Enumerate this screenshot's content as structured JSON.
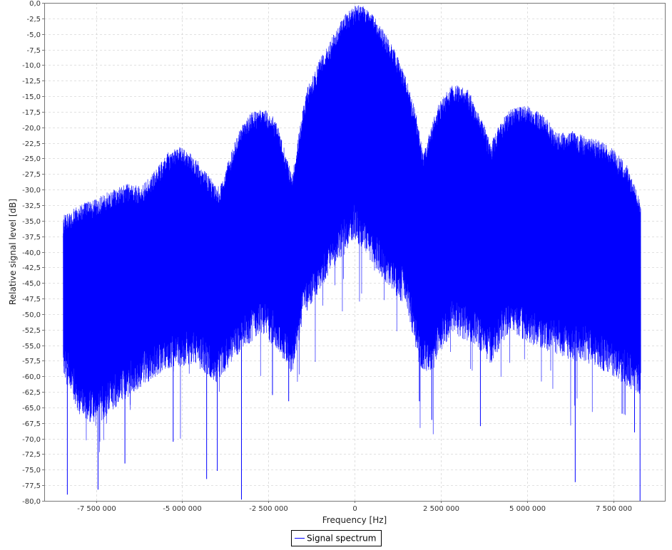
{
  "chart_data": {
    "type": "line",
    "xlabel": "Frequency [Hz]",
    "ylabel": "Relative signal level [dB]",
    "xlim": [
      -9000000,
      9000000
    ],
    "ylim": [
      -80,
      0
    ],
    "x_ticks": [
      -7500000,
      -5000000,
      -2500000,
      0,
      2500000,
      5000000,
      7500000
    ],
    "x_tick_labels": [
      "-7 500 000",
      "-5 000 000",
      "-2 500 000",
      "0",
      "2 500 000",
      "5 000 000",
      "7 500 000"
    ],
    "y_ticks": [
      0,
      -2.5,
      -5,
      -7.5,
      -10,
      -12.5,
      -15,
      -17.5,
      -20,
      -22.5,
      -25,
      -27.5,
      -30,
      -32.5,
      -35,
      -37.5,
      -40,
      -42.5,
      -45,
      -47.5,
      -50,
      -52.5,
      -55,
      -57.5,
      -60,
      -62.5,
      -65,
      -67.5,
      -70,
      -72.5,
      -75,
      -77.5,
      -80
    ],
    "y_tick_labels": [
      "0,0",
      "-2,5",
      "-5,0",
      "-7,5",
      "-10,0",
      "-12,5",
      "-15,0",
      "-17,5",
      "-20,0",
      "-22,5",
      "-25,0",
      "-27,5",
      "-30,0",
      "-32,5",
      "-35,0",
      "-37,5",
      "-40,0",
      "-42,5",
      "-45,0",
      "-47,5",
      "-50,0",
      "-52,5",
      "-55,0",
      "-57,5",
      "-60,0",
      "-62,5",
      "-65,0",
      "-67,5",
      "-70,0",
      "-72,5",
      "-75,0",
      "-77,5",
      "-80,0"
    ],
    "grid": true,
    "legend_position": "bottom-center",
    "series": [
      {
        "name": "Signal spectrum",
        "color": "#0000ff",
        "x_range": [
          -8450000,
          8300000
        ],
        "envelope_top": [
          {
            "x": -8450000,
            "y": -34
          },
          {
            "x": -7800000,
            "y": -32
          },
          {
            "x": -7000000,
            "y": -30
          },
          {
            "x": -6600000,
            "y": -29
          },
          {
            "x": -6200000,
            "y": -29.5
          },
          {
            "x": -5800000,
            "y": -27
          },
          {
            "x": -5400000,
            "y": -24
          },
          {
            "x": -5000000,
            "y": -23
          },
          {
            "x": -4600000,
            "y": -25
          },
          {
            "x": -4200000,
            "y": -28
          },
          {
            "x": -3900000,
            "y": -29.5
          },
          {
            "x": -3700000,
            "y": -26
          },
          {
            "x": -3400000,
            "y": -21
          },
          {
            "x": -3000000,
            "y": -17.5
          },
          {
            "x": -2600000,
            "y": -17
          },
          {
            "x": -2300000,
            "y": -18.5
          },
          {
            "x": -2050000,
            "y": -23
          },
          {
            "x": -1800000,
            "y": -27.5
          },
          {
            "x": -1650000,
            "y": -22
          },
          {
            "x": -1400000,
            "y": -14
          },
          {
            "x": -1000000,
            "y": -9
          },
          {
            "x": -600000,
            "y": -5
          },
          {
            "x": -300000,
            "y": -2
          },
          {
            "x": 0,
            "y": -0.5
          },
          {
            "x": 200000,
            "y": -0.2
          },
          {
            "x": 400000,
            "y": -1
          },
          {
            "x": 800000,
            "y": -4
          },
          {
            "x": 1200000,
            "y": -8
          },
          {
            "x": 1500000,
            "y": -12
          },
          {
            "x": 1800000,
            "y": -18
          },
          {
            "x": 2000000,
            "y": -24.5
          },
          {
            "x": 2150000,
            "y": -21
          },
          {
            "x": 2450000,
            "y": -16
          },
          {
            "x": 2850000,
            "y": -13
          },
          {
            "x": 3300000,
            "y": -14
          },
          {
            "x": 3650000,
            "y": -18
          },
          {
            "x": 3950000,
            "y": -22.5
          },
          {
            "x": 4150000,
            "y": -20
          },
          {
            "x": 4500000,
            "y": -17
          },
          {
            "x": 5000000,
            "y": -16.5
          },
          {
            "x": 5500000,
            "y": -18
          },
          {
            "x": 5900000,
            "y": -21
          },
          {
            "x": 6300000,
            "y": -20.5
          },
          {
            "x": 6700000,
            "y": -21.5
          },
          {
            "x": 7100000,
            "y": -22
          },
          {
            "x": 7500000,
            "y": -23.5
          },
          {
            "x": 7900000,
            "y": -26
          },
          {
            "x": 8300000,
            "y": -32
          }
        ],
        "envelope_bottom": [
          {
            "x": -8450000,
            "y": -57
          },
          {
            "x": -8000000,
            "y": -63
          },
          {
            "x": -7500000,
            "y": -65
          },
          {
            "x": -6500000,
            "y": -60
          },
          {
            "x": -5500000,
            "y": -56
          },
          {
            "x": -4700000,
            "y": -55
          },
          {
            "x": -4000000,
            "y": -58
          },
          {
            "x": -3300000,
            "y": -53
          },
          {
            "x": -2700000,
            "y": -50
          },
          {
            "x": -2100000,
            "y": -54
          },
          {
            "x": -1800000,
            "y": -57
          },
          {
            "x": -1500000,
            "y": -48
          },
          {
            "x": -900000,
            "y": -42
          },
          {
            "x": -400000,
            "y": -38
          },
          {
            "x": 0,
            "y": -35
          },
          {
            "x": 400000,
            "y": -38
          },
          {
            "x": 900000,
            "y": -42
          },
          {
            "x": 1500000,
            "y": -46
          },
          {
            "x": 1900000,
            "y": -56
          },
          {
            "x": 2200000,
            "y": -57
          },
          {
            "x": 2800000,
            "y": -50
          },
          {
            "x": 3500000,
            "y": -52
          },
          {
            "x": 3950000,
            "y": -55
          },
          {
            "x": 4500000,
            "y": -50
          },
          {
            "x": 5200000,
            "y": -52
          },
          {
            "x": 6000000,
            "y": -54
          },
          {
            "x": 6800000,
            "y": -55
          },
          {
            "x": 7500000,
            "y": -57
          },
          {
            "x": 8000000,
            "y": -59
          },
          {
            "x": 8300000,
            "y": -60
          }
        ],
        "deep_nulls": [
          {
            "x": -8330000,
            "y": -79
          },
          {
            "x": -7440000,
            "y": -78.2
          },
          {
            "x": -6660000,
            "y": -74
          },
          {
            "x": -5260000,
            "y": -70.5
          },
          {
            "x": -4290000,
            "y": -76.5
          },
          {
            "x": -3980000,
            "y": -75.2
          },
          {
            "x": -3280000,
            "y": -79.8
          },
          {
            "x": -2380000,
            "y": -63
          },
          {
            "x": -1910000,
            "y": -64
          },
          {
            "x": 1880000,
            "y": -64
          },
          {
            "x": 2240000,
            "y": -67
          },
          {
            "x": 3650000,
            "y": -68
          },
          {
            "x": 6400000,
            "y": -77
          },
          {
            "x": 7760000,
            "y": -66
          },
          {
            "x": 8120000,
            "y": -69
          },
          {
            "x": 8280000,
            "y": -80
          }
        ]
      }
    ]
  }
}
